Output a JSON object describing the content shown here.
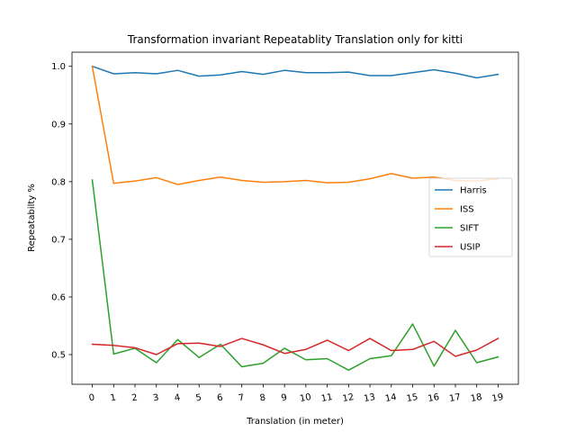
{
  "chart_data": {
    "type": "line",
    "title": "Transformation invariant Repeatablity Translation only for kitti",
    "xlabel": "Translation (in meter)",
    "ylabel": "Repeatabilty %",
    "x": [
      0,
      1,
      2,
      3,
      4,
      5,
      6,
      7,
      8,
      9,
      10,
      11,
      12,
      13,
      14,
      15,
      16,
      17,
      18,
      19
    ],
    "x_tick_labels": [
      "0",
      "1",
      "2",
      "3",
      "4",
      "5",
      "6",
      "7",
      "8",
      "9",
      "10",
      "11",
      "12",
      "13",
      "14",
      "15",
      "16",
      "17",
      "18",
      "19"
    ],
    "xlim": [
      -0.95,
      19.95
    ],
    "ylim": [
      0.4485,
      1.0245
    ],
    "y_ticks": [
      0.5,
      0.6,
      0.7,
      0.8,
      0.9,
      1.0
    ],
    "y_tick_labels": [
      "0.5",
      "0.6",
      "0.7",
      "0.8",
      "0.9",
      "1.0"
    ],
    "grid": false,
    "legend_position": "right",
    "series": [
      {
        "name": "Harris",
        "color": "#1f77b4",
        "values": [
          1.0,
          0.987,
          0.989,
          0.987,
          0.993,
          0.983,
          0.985,
          0.991,
          0.986,
          0.993,
          0.989,
          0.989,
          0.99,
          0.984,
          0.984,
          0.989,
          0.994,
          0.988,
          0.98,
          0.986
        ]
      },
      {
        "name": "ISS",
        "color": "#ff7f0e",
        "values": [
          1.0,
          0.797,
          0.801,
          0.807,
          0.795,
          0.802,
          0.808,
          0.802,
          0.799,
          0.8,
          0.802,
          0.798,
          0.799,
          0.805,
          0.814,
          0.806,
          0.808,
          0.802,
          0.801,
          0.805
        ]
      },
      {
        "name": "SIFT",
        "color": "#2ca02c",
        "values": [
          0.803,
          0.501,
          0.511,
          0.486,
          0.526,
          0.495,
          0.518,
          0.479,
          0.485,
          0.511,
          0.491,
          0.493,
          0.473,
          0.493,
          0.498,
          0.553,
          0.48,
          0.542,
          0.486,
          0.496
        ]
      },
      {
        "name": "USIP",
        "color": "#d62728",
        "values": [
          0.518,
          0.516,
          0.512,
          0.5,
          0.519,
          0.52,
          0.514,
          0.528,
          0.517,
          0.502,
          0.509,
          0.525,
          0.507,
          0.528,
          0.507,
          0.509,
          0.523,
          0.497,
          0.508,
          0.528
        ]
      }
    ]
  }
}
